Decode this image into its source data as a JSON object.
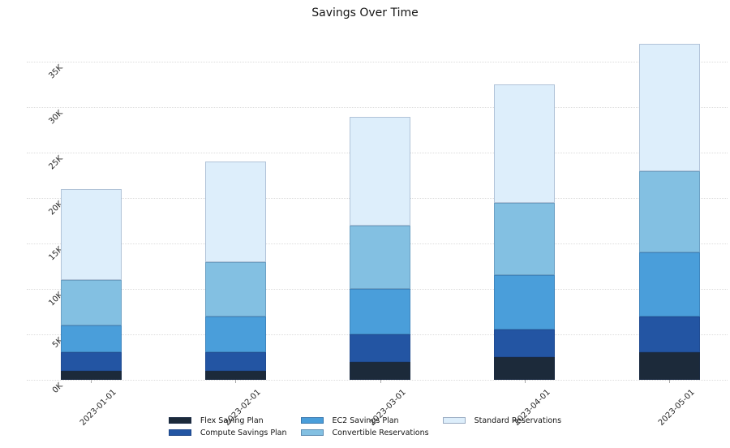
{
  "chart_data": {
    "type": "bar",
    "stacked": true,
    "title": "Savings Over Time",
    "categories": [
      "2023-01-01",
      "2023-02-01",
      "2023-03-01",
      "2023-04-01",
      "2023-05-01"
    ],
    "series": [
      {
        "name": "Flex Saving Plan",
        "color": "#1c2a3a",
        "values": [
          1000,
          1000,
          2000,
          2500,
          3000
        ]
      },
      {
        "name": "Compute Savings Plan",
        "color": "#2355a3",
        "values": [
          2000,
          2000,
          3000,
          3000,
          4000
        ]
      },
      {
        "name": "EC2 Savings Plan",
        "color": "#4a9eda",
        "values": [
          3000,
          4000,
          5000,
          6000,
          7000
        ]
      },
      {
        "name": "Convertible Reservations",
        "color": "#83c0e2",
        "values": [
          5000,
          6000,
          7000,
          8000,
          9000
        ]
      },
      {
        "name": "Standard Reservations",
        "color": "#ddeefb",
        "values": [
          10000,
          11000,
          12000,
          13000,
          14000
        ]
      }
    ],
    "stack_totals": [
      21000,
      24000,
      29000,
      32500,
      37000
    ],
    "yticks": {
      "values": [
        0,
        5000,
        10000,
        15000,
        20000,
        25000,
        30000,
        35000
      ],
      "labels": [
        "0K",
        "5K",
        "10K",
        "15K",
        "20K",
        "25K",
        "30K",
        "35K"
      ]
    },
    "ylim": [
      0,
      37800
    ],
    "xlabel": "",
    "ylabel": "",
    "grid": "horizontal-dotted",
    "tick_rotation_deg": 45,
    "legend_position": "bottom-center",
    "legend_columns": 3
  },
  "colors": {
    "background": "#ffffff",
    "gridline": "#dcdcdc",
    "tick_text": "#262626",
    "title_text": "#151515"
  }
}
